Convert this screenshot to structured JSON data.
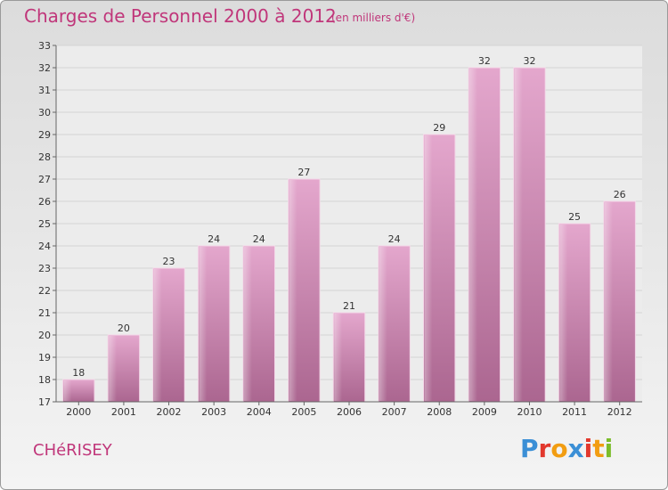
{
  "header": {
    "title": "Charges de Personnel 2000 à 2012",
    "subtitle": "(en milliers d'€)"
  },
  "footer": {
    "commune": "CHéRISEY",
    "logo_letters": [
      "P",
      "r",
      "o",
      "x",
      "i",
      "t",
      "i"
    ],
    "logo_colors": [
      "#3b8fd6",
      "#e2382d",
      "#f29d12",
      "#3b8fd6",
      "#e2382d",
      "#f29d12",
      "#7cbd2b"
    ]
  },
  "chart_data": {
    "type": "bar",
    "categories": [
      "2000",
      "2001",
      "2002",
      "2003",
      "2004",
      "2005",
      "2006",
      "2007",
      "2008",
      "2009",
      "2010",
      "2011",
      "2012"
    ],
    "values": [
      18,
      20,
      23,
      24,
      24,
      27,
      21,
      24,
      29,
      32,
      32,
      25,
      26
    ],
    "ylim": [
      17,
      33
    ],
    "yticks": [
      17,
      18,
      19,
      20,
      21,
      22,
      23,
      24,
      25,
      26,
      27,
      28,
      29,
      30,
      31,
      32,
      33
    ],
    "grid": true,
    "bar_color": "#d9a0c3",
    "bar_color_dark": "#b06690"
  }
}
